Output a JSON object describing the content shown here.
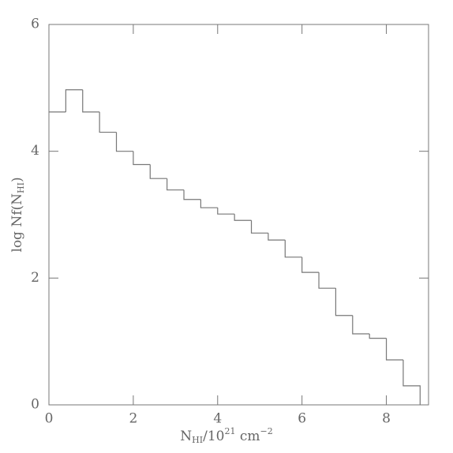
{
  "chart_data": {
    "type": "histogram",
    "xlabel": [
      "N",
      "HI",
      "/10",
      "21",
      " cm",
      "−2"
    ],
    "ylabel": [
      "log Nf(N",
      "HI",
      ")"
    ],
    "bins": [
      0,
      0.4,
      0.8,
      1.2,
      1.6,
      2.0,
      2.4,
      2.8,
      3.2,
      3.6,
      4.0,
      4.4,
      4.8,
      5.2,
      5.6,
      6.0,
      6.4,
      6.8,
      7.2,
      7.6,
      8.0,
      8.4,
      8.8
    ],
    "values": [
      4.62,
      4.97,
      4.62,
      4.3,
      4.0,
      3.79,
      3.57,
      3.39,
      3.24,
      3.11,
      3.01,
      2.91,
      2.71,
      2.6,
      2.33,
      2.09,
      1.84,
      1.41,
      1.12,
      1.05,
      0.71,
      0.3
    ],
    "color": "#777777",
    "xlim": [
      0,
      9
    ],
    "xticks": [
      0,
      2,
      4,
      6,
      8
    ],
    "ylim": [
      0,
      6
    ],
    "yticks": [
      0,
      2,
      4,
      6
    ]
  }
}
